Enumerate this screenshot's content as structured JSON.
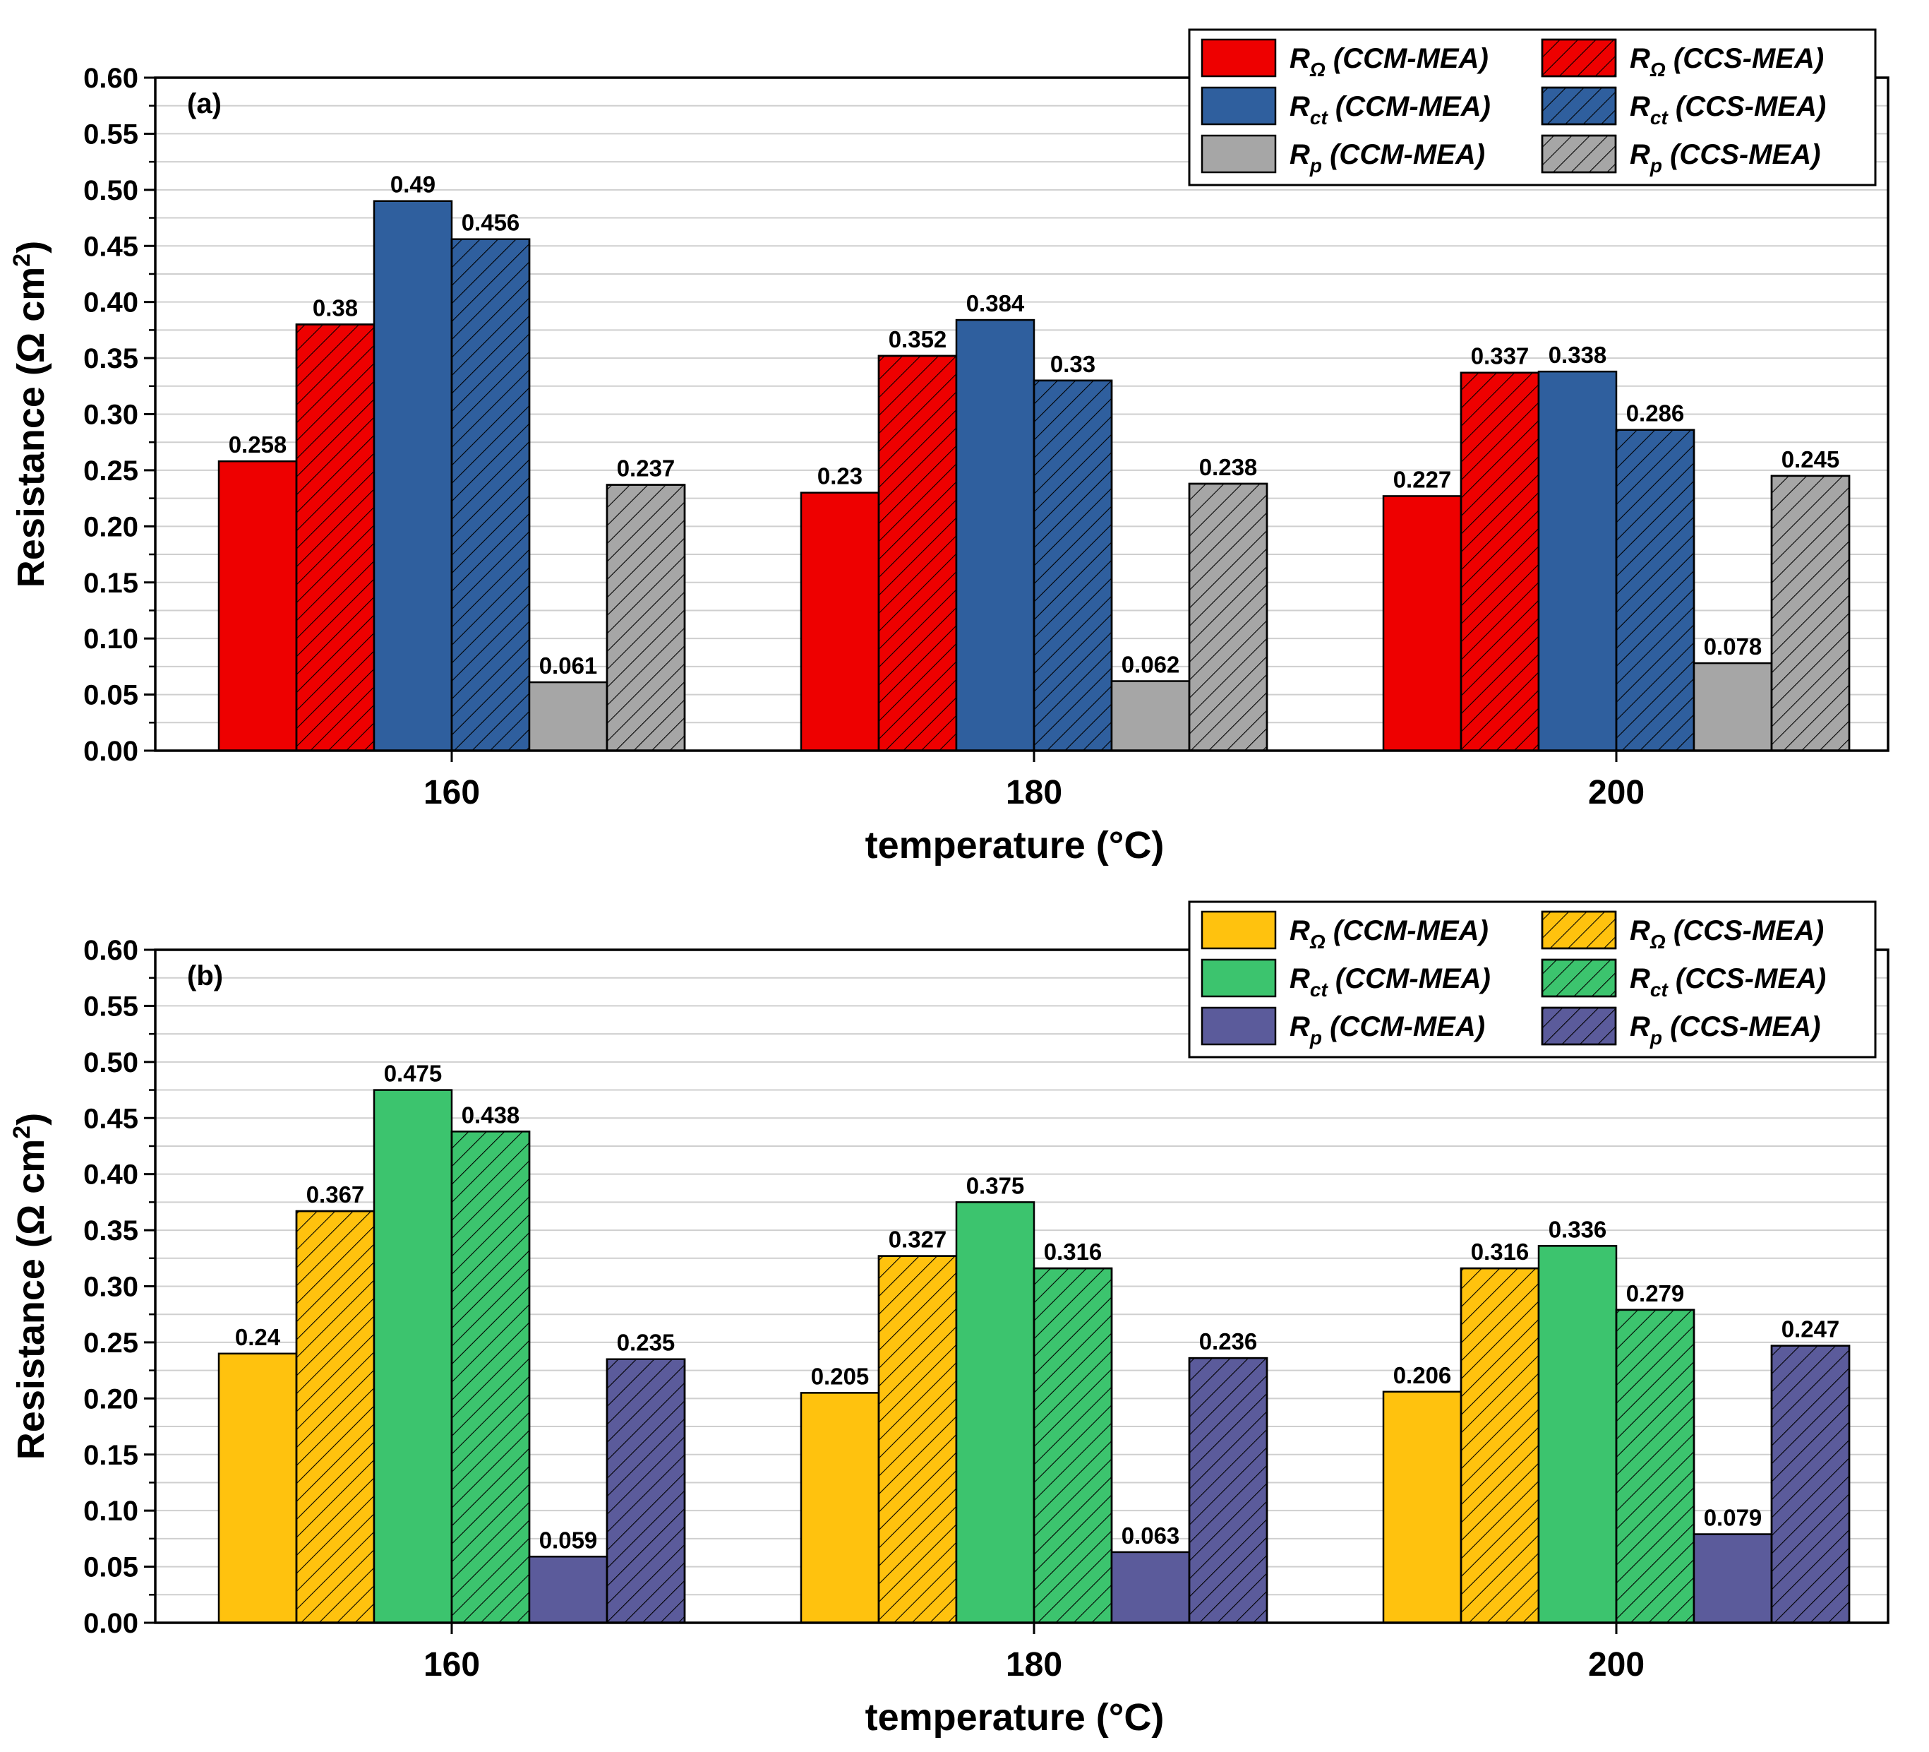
{
  "colors": {
    "panel_a": {
      "r_ohm": "#ee0000",
      "r_ct": "#2f5f9e",
      "r_p": "#a6a6a6"
    },
    "panel_b": {
      "r_ohm": "#ffc20e",
      "r_ct": "#3cc46e",
      "r_p": "#5b5b9b"
    }
  },
  "icons": {
    "hatch": "diagonal-hatch-pattern"
  },
  "chart_data": [
    {
      "type": "bar",
      "panel_label": "(a)",
      "categories": [
        "160",
        "180",
        "200"
      ],
      "xlabel": "temperature (°C)",
      "ylabel": "Resistance (Ω cm²)",
      "ylabel_parts": {
        "main": "Resistance (Ω cm",
        "sup": "2",
        "end": ")"
      },
      "ylim": [
        0,
        0.6
      ],
      "yticks": [
        "0.00",
        "0.05",
        "0.10",
        "0.15",
        "0.20",
        "0.25",
        "0.30",
        "0.35",
        "0.40",
        "0.45",
        "0.50",
        "0.55",
        "0.60"
      ],
      "grid": true,
      "legend_position": "top-right",
      "series": [
        {
          "name": "RΩ (CCM-MEA)",
          "base": "R",
          "sub": "Ω",
          "suffix": " (CCM-MEA)",
          "color_key": "r_ohm",
          "hatched": false,
          "values": [
            0.258,
            0.23,
            0.227
          ],
          "labels": [
            "0.258",
            "0.23",
            "0.227"
          ]
        },
        {
          "name": "RΩ (CCS-MEA)",
          "base": "R",
          "sub": "Ω",
          "suffix": " (CCS-MEA)",
          "color_key": "r_ohm",
          "hatched": true,
          "values": [
            0.38,
            0.352,
            0.337
          ],
          "labels": [
            "0.38",
            "0.352",
            "0.337"
          ]
        },
        {
          "name": "Rct (CCM-MEA)",
          "base": "R",
          "sub": "ct",
          "suffix": " (CCM-MEA)",
          "color_key": "r_ct",
          "hatched": false,
          "values": [
            0.49,
            0.384,
            0.338
          ],
          "labels": [
            "0.49",
            "0.384",
            "0.338"
          ]
        },
        {
          "name": "Rct (CCS-MEA)",
          "base": "R",
          "sub": "ct",
          "suffix": " (CCS-MEA)",
          "color_key": "r_ct",
          "hatched": true,
          "values": [
            0.456,
            0.33,
            0.286
          ],
          "labels": [
            "0.456",
            "0.33",
            "0.286"
          ]
        },
        {
          "name": "Rp (CCM-MEA)",
          "base": "R",
          "sub": "p",
          "suffix": " (CCM-MEA)",
          "color_key": "r_p",
          "hatched": false,
          "values": [
            0.061,
            0.062,
            0.078
          ],
          "labels": [
            "0.061",
            "0.062",
            "0.078"
          ]
        },
        {
          "name": "Rp (CCS-MEA)",
          "base": "R",
          "sub": "p",
          "suffix": " (CCS-MEA)",
          "color_key": "r_p",
          "hatched": true,
          "values": [
            0.237,
            0.238,
            0.245
          ],
          "labels": [
            "0.237",
            "0.238",
            "0.245"
          ]
        }
      ]
    },
    {
      "type": "bar",
      "panel_label": "(b)",
      "categories": [
        "160",
        "180",
        "200"
      ],
      "xlabel": "temperature (°C)",
      "ylabel": "Resistance (Ω cm²)",
      "ylabel_parts": {
        "main": "Resistance (Ω cm",
        "sup": "2",
        "end": ")"
      },
      "ylim": [
        0,
        0.6
      ],
      "yticks": [
        "0.00",
        "0.05",
        "0.10",
        "0.15",
        "0.20",
        "0.25",
        "0.30",
        "0.35",
        "0.40",
        "0.45",
        "0.50",
        "0.55",
        "0.60"
      ],
      "grid": true,
      "legend_position": "top-right",
      "series": [
        {
          "name": "RΩ (CCM-MEA)",
          "base": "R",
          "sub": "Ω",
          "suffix": " (CCM-MEA)",
          "color_key": "r_ohm",
          "hatched": false,
          "values": [
            0.24,
            0.205,
            0.206
          ],
          "labels": [
            "0.24",
            "0.205",
            "0.206"
          ]
        },
        {
          "name": "RΩ (CCS-MEA)",
          "base": "R",
          "sub": "Ω",
          "suffix": " (CCS-MEA)",
          "color_key": "r_ohm",
          "hatched": true,
          "values": [
            0.367,
            0.327,
            0.316
          ],
          "labels": [
            "0.367",
            "0.327",
            "0.316"
          ]
        },
        {
          "name": "Rct (CCM-MEA)",
          "base": "R",
          "sub": "ct",
          "suffix": " (CCM-MEA)",
          "color_key": "r_ct",
          "hatched": false,
          "values": [
            0.475,
            0.375,
            0.336
          ],
          "labels": [
            "0.475",
            "0.375",
            "0.336"
          ]
        },
        {
          "name": "Rct (CCS-MEA)",
          "base": "R",
          "sub": "ct",
          "suffix": " (CCS-MEA)",
          "color_key": "r_ct",
          "hatched": true,
          "values": [
            0.438,
            0.316,
            0.279
          ],
          "labels": [
            "0.438",
            "0.316",
            "0.279"
          ]
        },
        {
          "name": "Rp (CCM-MEA)",
          "base": "R",
          "sub": "p",
          "suffix": " (CCM-MEA)",
          "color_key": "r_p",
          "hatched": false,
          "values": [
            0.059,
            0.063,
            0.079
          ],
          "labels": [
            "0.059",
            "0.063",
            "0.079"
          ]
        },
        {
          "name": "Rp (CCS-MEA)",
          "base": "R",
          "sub": "p",
          "suffix": " (CCS-MEA)",
          "color_key": "r_p",
          "hatched": true,
          "values": [
            0.235,
            0.236,
            0.247
          ],
          "labels": [
            "0.235",
            "0.236",
            "0.247"
          ]
        }
      ]
    }
  ]
}
